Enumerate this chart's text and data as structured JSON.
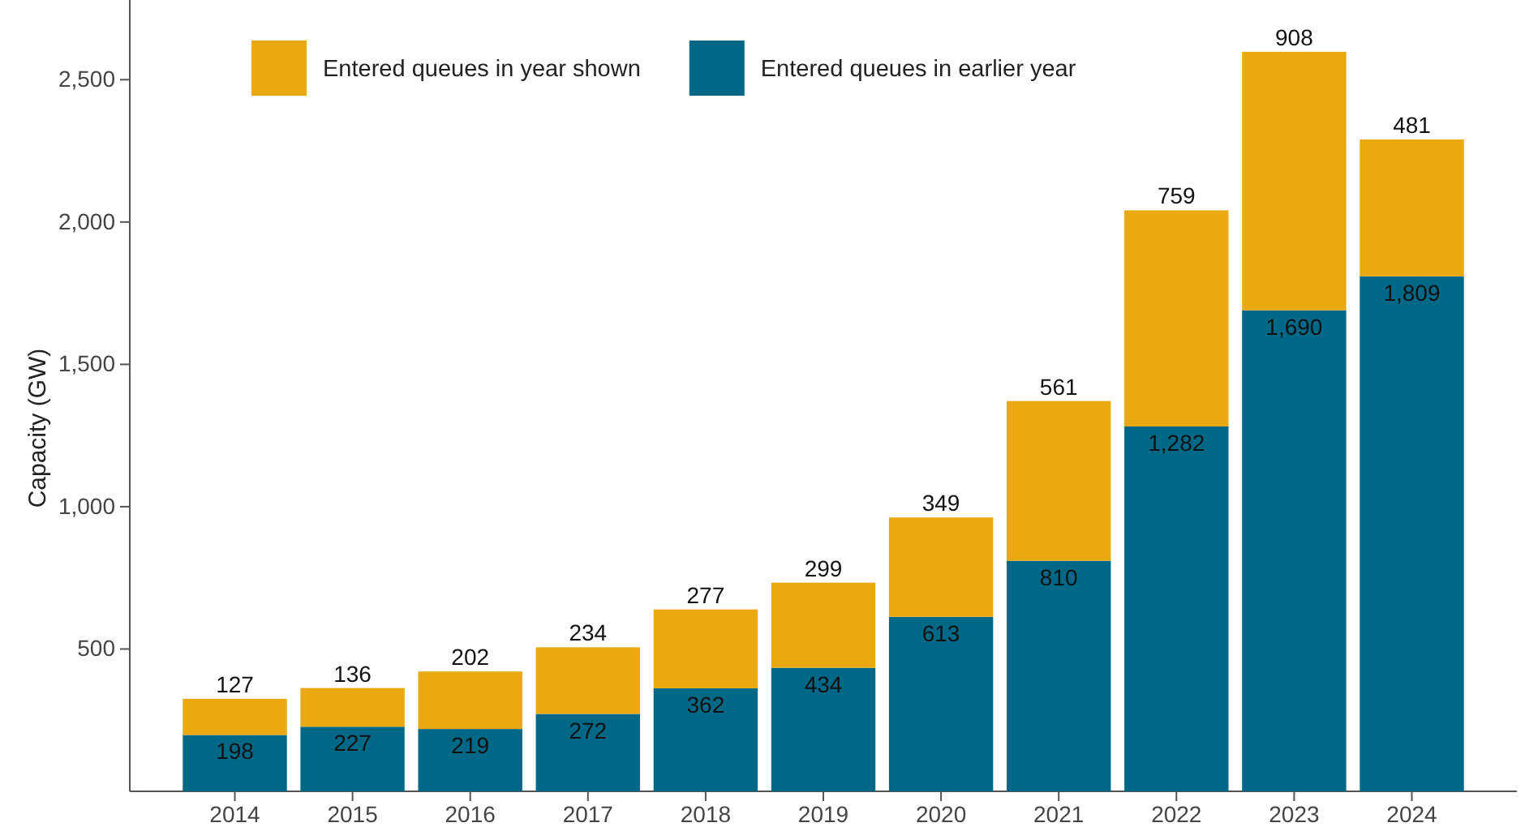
{
  "chart_data": {
    "type": "bar",
    "stacked": true,
    "ylabel": "Capacity (GW)",
    "categories": [
      "2014",
      "2015",
      "2016",
      "2017",
      "2018",
      "2019",
      "2020",
      "2021",
      "2022",
      "2023",
      "2024"
    ],
    "series": [
      {
        "name": "Entered queues in earlier year",
        "color": "#006887",
        "values": [
          198,
          227,
          219,
          272,
          362,
          434,
          613,
          810,
          1282,
          1690,
          1809
        ],
        "value_labels": [
          "198",
          "227",
          "219",
          "272",
          "362",
          "434",
          "613",
          "810",
          "1,282",
          "1,690",
          "1,809"
        ]
      },
      {
        "name": "Entered queues in year shown",
        "color": "#eaa911",
        "values": [
          127,
          136,
          202,
          234,
          277,
          299,
          349,
          561,
          759,
          908,
          481
        ],
        "value_labels": [
          "127",
          "136",
          "202",
          "234",
          "277",
          "299",
          "349",
          "561",
          "759",
          "908",
          "481"
        ]
      }
    ],
    "ylim": [
      0,
      2780
    ],
    "yticks": [
      {
        "value": 500,
        "label": "500"
      },
      {
        "value": 1000,
        "label": "1,000"
      },
      {
        "value": 1500,
        "label": "1,500"
      },
      {
        "value": 2000,
        "label": "2,000"
      },
      {
        "value": 2500,
        "label": "2,500"
      }
    ],
    "legend": "top left",
    "grid": false
  }
}
